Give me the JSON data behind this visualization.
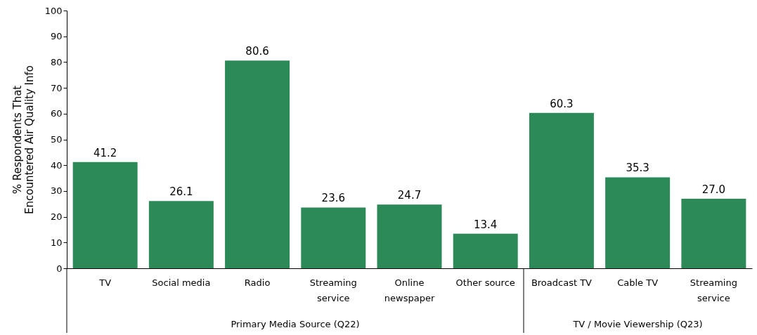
{
  "chart_data": {
    "type": "bar",
    "ylabel": "% Respondents That Encountered Air Quality Info",
    "categories": [
      "TV",
      "Social media",
      "Radio",
      "Streaming service",
      "Online newspaper",
      "Other source",
      "Broadcast TV",
      "Cable TV",
      "Streaming service"
    ],
    "values": [
      41.2,
      26.1,
      80.6,
      23.6,
      24.7,
      13.4,
      60.3,
      35.3,
      27.0
    ],
    "value_labels": [
      "41.2",
      "26.1",
      "80.6",
      "23.6",
      "24.7",
      "13.4",
      "60.3",
      "35.3",
      "27.0"
    ],
    "color": "#2b8a58",
    "grid": false,
    "ylim": [
      0,
      100
    ],
    "yticks": [
      0,
      10,
      20,
      30,
      40,
      50,
      60,
      70,
      80,
      90,
      100
    ],
    "annotations": [
      "Primary Media Source (Q22)",
      "TV / Movie Viewership (Q23)"
    ]
  }
}
